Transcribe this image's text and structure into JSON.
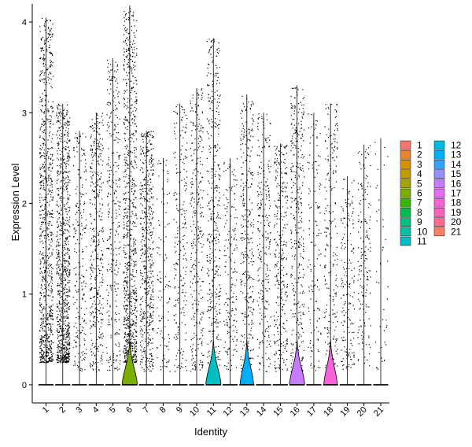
{
  "chart_data": {
    "type": "violin",
    "xlabel": "Identity",
    "ylabel": "Expression Level",
    "ylim": [
      -0.2,
      4.2
    ],
    "yticks": [
      0,
      1,
      2,
      3,
      4
    ],
    "grid": false,
    "legend_position": "right",
    "categories": [
      "1",
      "2",
      "3",
      "4",
      "5",
      "6",
      "7",
      "8",
      "9",
      "10",
      "11",
      "12",
      "13",
      "14",
      "15",
      "16",
      "17",
      "18",
      "19",
      "20",
      "21"
    ],
    "colors": [
      "#F8766D",
      "#EA8331",
      "#D89000",
      "#C09B00",
      "#A3A500",
      "#7CAE00",
      "#39B600",
      "#00BB4E",
      "#00BF7D",
      "#00C1A3",
      "#00BFC4",
      "#00BAE0",
      "#00B0F6",
      "#35A2FF",
      "#9590FF",
      "#C77CFF",
      "#E76BF3",
      "#FA62DB",
      "#FF62BC",
      "#FF6C91",
      "#FF7F67"
    ],
    "max_values": [
      4.05,
      3.1,
      2.8,
      3.0,
      3.6,
      4.18,
      2.8,
      2.5,
      3.1,
      3.27,
      3.82,
      2.5,
      3.2,
      3.0,
      2.66,
      3.3,
      3.0,
      3.1,
      2.3,
      2.65,
      2.72
    ],
    "nonzero_density": [
      1.0,
      1.0,
      0.25,
      0.45,
      0.35,
      1.0,
      0.6,
      0.12,
      0.25,
      0.35,
      0.45,
      0.2,
      0.35,
      0.3,
      0.35,
      0.4,
      0.15,
      0.25,
      0.2,
      0.2,
      0.05
    ],
    "zero_bulge_width": [
      0,
      0,
      0,
      0,
      0,
      0.45,
      0,
      0,
      0,
      0,
      0.45,
      0,
      0.4,
      0,
      0,
      0.45,
      0,
      0.4,
      0,
      0,
      0
    ]
  }
}
